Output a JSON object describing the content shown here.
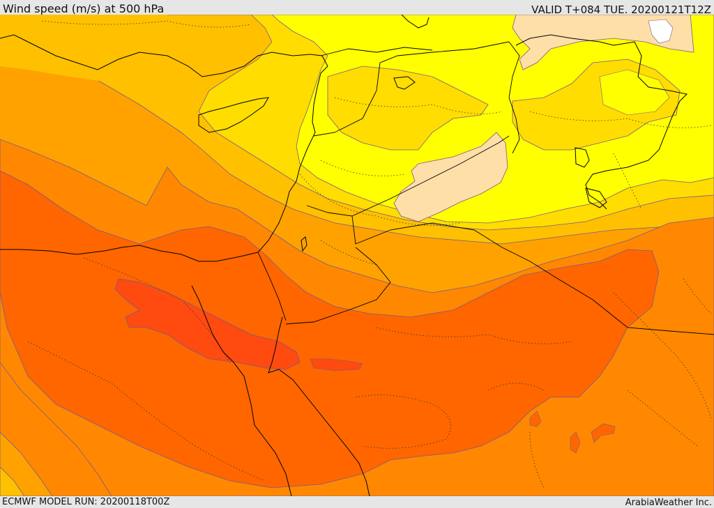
{
  "header": {
    "title": "Wind speed (m/s) at 500 hPa",
    "valid_time": "VALID T+084 TUE. 20200121T12Z"
  },
  "footer": {
    "model_run": "ECMWF MODEL RUN: 20200118T00Z",
    "credit": "ArabiaWeather Inc."
  },
  "colors": {
    "band_white": "#ffffff",
    "band_peach": "#ffdfa8",
    "band_yellow": "#ffff00",
    "band_gold": "#ffdd00",
    "band_amber": "#ffc000",
    "band_orange_light": "#ffa200",
    "band_orange": "#ff8800",
    "band_orange_dark": "#ff6600",
    "band_red_orange": "#ff4a10",
    "contour_line": "#7a5a8a",
    "coastline": "#000000"
  }
}
